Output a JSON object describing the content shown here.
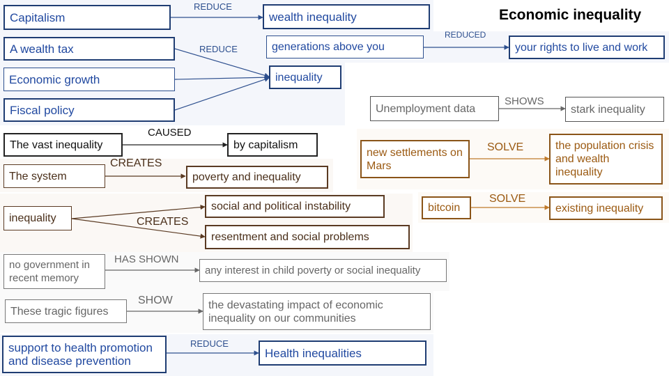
{
  "title": "Economic inequality",
  "colors": {
    "blue": "#2149a0",
    "black": "#111111",
    "brown": "#5a3a22",
    "orange": "#9b5a12",
    "gray": "#666666"
  },
  "relations": [
    {
      "subject": "Capitalism",
      "verb": "REDUCE",
      "object": "wealth inequality"
    },
    {
      "subject": "generations above you",
      "verb": "REDUCED",
      "object": "your rights to live and work"
    },
    {
      "subjects": [
        "A wealth tax",
        "Economic growth",
        "Fiscal policy"
      ],
      "verb": "REDUCE",
      "object": "inequality"
    },
    {
      "subject": "Unemployment data",
      "verb": "SHOWS",
      "object": "stark inequality"
    },
    {
      "subject": "The vast inequality",
      "verb": "CAUSED",
      "object": "by capitalism"
    },
    {
      "subject": "new settlements on Mars",
      "verb": "SOLVE",
      "object": "the population crisis and wealth inequality"
    },
    {
      "subject": "The system",
      "verb": "CREATES",
      "object": "poverty and inequality"
    },
    {
      "subject": "bitcoin",
      "verb": "SOLVE",
      "object": "existing inequality"
    },
    {
      "subject": "inequality",
      "verb": "CREATES",
      "objects": [
        "social and political instability",
        "resentment and social problems"
      ]
    },
    {
      "subject": "no government in recent memory",
      "verb": "HAS SHOWN",
      "object": "any interest in child poverty or social inequality"
    },
    {
      "subject": "These tragic figures",
      "verb": "SHOW",
      "object": "the devastating impact of economic inequality on our communities"
    },
    {
      "subject": "support to health promotion and disease prevention",
      "verb": "REDUCE",
      "object": "Health inequalities"
    }
  ]
}
